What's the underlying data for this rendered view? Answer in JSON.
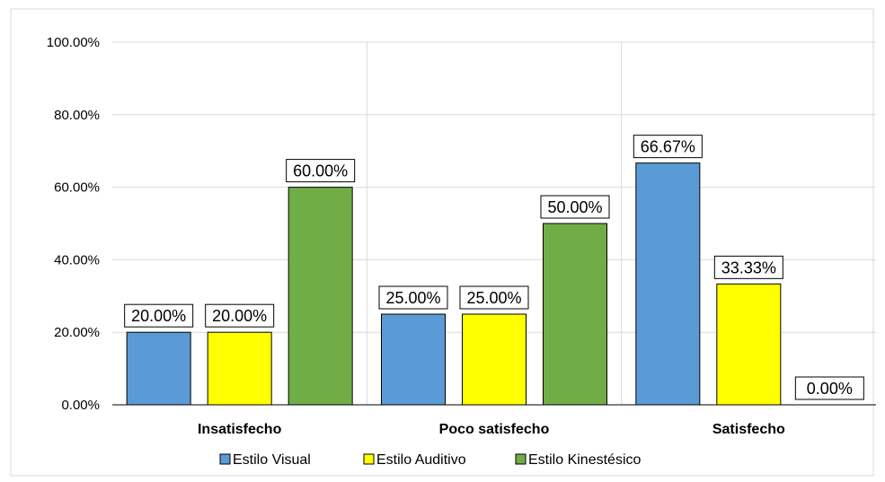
{
  "chart_data": {
    "type": "bar",
    "categories": [
      "Insatisfecho",
      "Poco satisfecho",
      "Satisfecho"
    ],
    "series": [
      {
        "name": "Estilo Visual",
        "values": [
          20.0,
          25.0,
          66.67
        ],
        "color": "#5B9BD5"
      },
      {
        "name": "Estilo Auditivo",
        "values": [
          20.0,
          25.0,
          33.33
        ],
        "color": "#FFFF00"
      },
      {
        "name": "Estilo Kinestésico",
        "values": [
          60.0,
          50.0,
          0.0
        ],
        "color": "#70AD47"
      }
    ],
    "data_labels": [
      [
        "20.00%",
        "25.00%",
        "66.67%"
      ],
      [
        "20.00%",
        "25.00%",
        "33.33%"
      ],
      [
        "60.00%",
        "50.00%",
        "0.00%"
      ]
    ],
    "y_ticks": [
      0,
      20,
      40,
      60,
      80,
      100
    ],
    "y_tick_labels": [
      "0.00%",
      "20.00%",
      "40.00%",
      "60.00%",
      "80.00%",
      "100.00%"
    ],
    "ylim": [
      0,
      100
    ],
    "grid": true,
    "legend_position": "bottom",
    "title": "",
    "xlabel": "",
    "ylabel": ""
  }
}
